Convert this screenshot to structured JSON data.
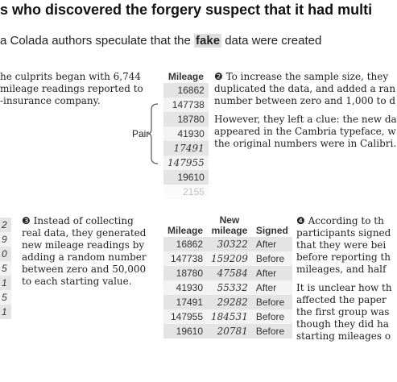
{
  "header": {
    "title": "s who discovered the forgery suspect that it had multi",
    "subtitle": {
      "before": "a Colada authors speculate that the",
      "highlight": "fake",
      "after": "data were created"
    }
  },
  "step1": {
    "lines": [
      "he culprits began with 6,744",
      "mileage readings reported to",
      "-insurance company."
    ]
  },
  "table1": {
    "header": "Mileage",
    "rows": [
      "16862",
      "147738",
      "18780",
      "41930",
      "17491",
      "147955",
      "19610",
      "2155"
    ]
  },
  "pair_label": "Pair",
  "step2": {
    "paragraphs": [
      [
        "❷ To increase the sample size, they",
        "duplicated the data, and added a ran",
        "number between zero and 1,000 to d"
      ],
      [
        "However, they left a clue: the new da",
        "appeared in the Cambria typeface, w",
        "the original numbers were in Calibri."
      ]
    ]
  },
  "fragment_table": {
    "rows": [
      "2",
      "9",
      "0",
      "5",
      "1",
      "5",
      "1"
    ]
  },
  "step3": {
    "lines": [
      "❸ Instead of collecting",
      "real data, they generated",
      "new mileage readings by",
      "adding a random number",
      "between zero and 50,000",
      "to each starting value."
    ]
  },
  "table2": {
    "headers": [
      "Mileage",
      "New mileage",
      "Signed"
    ],
    "rows": [
      [
        "16862",
        "30322",
        "After"
      ],
      [
        "147738",
        "159209",
        "Before"
      ],
      [
        "18780",
        "47584",
        "After"
      ],
      [
        "41930",
        "55332",
        "After"
      ],
      [
        "17491",
        "29282",
        "Before"
      ],
      [
        "147955",
        "184531",
        "Before"
      ],
      [
        "19610",
        "20781",
        "Before"
      ]
    ]
  },
  "step4": {
    "paragraphs": [
      [
        "❹ According to th",
        "participants signed",
        "that they were bei",
        "before reporting th",
        "mileages, and half"
      ],
      [
        "It is unclear how th",
        "affected the paper",
        "the first group was",
        "though they did ha",
        "starting mileages o"
      ]
    ]
  }
}
